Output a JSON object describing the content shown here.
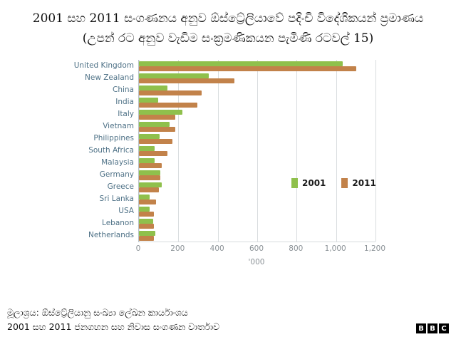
{
  "title": {
    "line1": "2001 සහ 2011 සංගණනය අනුව ඕස්ට්‍රේලියාවේ පදිංචි විදේශිකයන් ප්‍රමාණය",
    "line2": "(උපන් රට අනුව වැඩිම සංක්‍රමණිකයන  පැමිණි රටවල් 15)"
  },
  "footer": {
    "line1": "මූලාශ්‍රය: ඕස්ට්‍රේලියානු සංඛ්‍යා ලේඛන කාර්යාංශය",
    "line2": "2001 සහ 2011 ජනගහන සහ නිවාස සංගණන වාර්තාව"
  },
  "logo": {
    "letters": [
      "B",
      "B",
      "C"
    ]
  },
  "chart_data": {
    "type": "bar",
    "orientation": "horizontal",
    "title": "",
    "xlabel": "'000",
    "ylabel": "",
    "xlim": [
      0,
      1200
    ],
    "x_ticks": [
      0,
      200,
      400,
      600,
      800,
      1000,
      1200
    ],
    "x_tick_labels": [
      "0",
      "200",
      "400",
      "600",
      "800",
      "1,000",
      "1,200"
    ],
    "grid": true,
    "legend_position": "inside-right",
    "categories": [
      "United Kingdom",
      "New Zealand",
      "China",
      "India",
      "Italy",
      "Vietnam",
      "Philippines",
      "South Africa",
      "Malaysia",
      "Germany",
      "Greece",
      "Sri Lanka",
      "USA",
      "Lebanon",
      "Netherlands"
    ],
    "series": [
      {
        "name": "2001",
        "color": "#8fc04c",
        "values": [
          1035,
          355,
          143,
          96,
          219,
          155,
          104,
          79,
          79,
          108,
          116,
          53,
          54,
          71,
          83
        ]
      },
      {
        "name": "2011",
        "color": "#c2824a",
        "values": [
          1101,
          483,
          319,
          295,
          185,
          185,
          171,
          146,
          116,
          108,
          100,
          86,
          77,
          76,
          76
        ]
      }
    ]
  }
}
